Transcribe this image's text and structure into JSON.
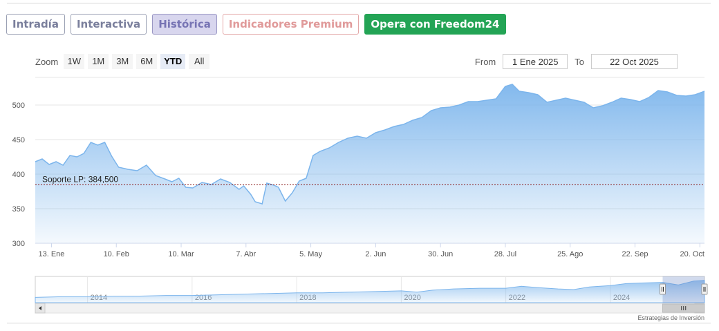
{
  "tabs": [
    {
      "label": "Intradía",
      "style": "normal"
    },
    {
      "label": "Interactiva",
      "style": "normal"
    },
    {
      "label": "Histórica",
      "style": "active"
    },
    {
      "label": "Indicadores Premium",
      "style": "premium"
    },
    {
      "label": "Opera con Freedom24",
      "style": "cta"
    }
  ],
  "zoom": {
    "label": "Zoom",
    "buttons": [
      "1W",
      "1M",
      "3M",
      "6M",
      "YTD",
      "All"
    ],
    "selected": "YTD"
  },
  "range": {
    "from_label": "From",
    "from_value": "1 Ene 2025",
    "to_label": "To",
    "to_value": "22 Oct 2025"
  },
  "credit": "Estrategias de Inversión",
  "chart_data": {
    "type": "area",
    "ylim": [
      300,
      540
    ],
    "yticks": [
      300,
      350,
      400,
      450,
      500
    ],
    "x_start": "2025-01-06",
    "x_end": "2025-10-22",
    "xticks": [
      {
        "date": "2025-01-13",
        "label": "13. Ene"
      },
      {
        "date": "2025-02-10",
        "label": "10. Feb"
      },
      {
        "date": "2025-03-10",
        "label": "10. Mar"
      },
      {
        "date": "2025-04-07",
        "label": "7. Abr"
      },
      {
        "date": "2025-05-05",
        "label": "5. May"
      },
      {
        "date": "2025-06-02",
        "label": "2. Jun"
      },
      {
        "date": "2025-06-30",
        "label": "30. Jun"
      },
      {
        "date": "2025-07-28",
        "label": "28. Jul"
      },
      {
        "date": "2025-08-25",
        "label": "25. Ago"
      },
      {
        "date": "2025-09-22",
        "label": "22. Sep"
      },
      {
        "date": "2025-10-20",
        "label": "20. Oct"
      }
    ],
    "line_color": "#7cb5ec",
    "support": {
      "label": "Soporte LP: 384,500",
      "value": 384.5,
      "color": "#8b1a1a"
    },
    "series": [
      {
        "values": [
          [
            "2025-01-06",
            418
          ],
          [
            "2025-01-09",
            422
          ],
          [
            "2025-01-12",
            414
          ],
          [
            "2025-01-15",
            418
          ],
          [
            "2025-01-18",
            413
          ],
          [
            "2025-01-21",
            427
          ],
          [
            "2025-01-24",
            425
          ],
          [
            "2025-01-27",
            430
          ],
          [
            "2025-01-30",
            446
          ],
          [
            "2025-02-02",
            442
          ],
          [
            "2025-02-05",
            446
          ],
          [
            "2025-02-08",
            426
          ],
          [
            "2025-02-11",
            410
          ],
          [
            "2025-02-15",
            407
          ],
          [
            "2025-02-19",
            405
          ],
          [
            "2025-02-23",
            413
          ],
          [
            "2025-02-27",
            398
          ],
          [
            "2025-03-03",
            393
          ],
          [
            "2025-03-06",
            389
          ],
          [
            "2025-03-09",
            394
          ],
          [
            "2025-03-12",
            381
          ],
          [
            "2025-03-15",
            380
          ],
          [
            "2025-03-19",
            388
          ],
          [
            "2025-03-23",
            385
          ],
          [
            "2025-03-27",
            393
          ],
          [
            "2025-03-31",
            388
          ],
          [
            "2025-04-04",
            378
          ],
          [
            "2025-04-06",
            383
          ],
          [
            "2025-04-09",
            371
          ],
          [
            "2025-04-11",
            360
          ],
          [
            "2025-04-14",
            357
          ],
          [
            "2025-04-16",
            387
          ],
          [
            "2025-04-19",
            384
          ],
          [
            "2025-04-21",
            381
          ],
          [
            "2025-04-24",
            361
          ],
          [
            "2025-04-27",
            373
          ],
          [
            "2025-04-30",
            390
          ],
          [
            "2025-05-03",
            394
          ],
          [
            "2025-05-06",
            427
          ],
          [
            "2025-05-09",
            433
          ],
          [
            "2025-05-13",
            438
          ],
          [
            "2025-05-17",
            446
          ],
          [
            "2025-05-21",
            452
          ],
          [
            "2025-05-25",
            455
          ],
          [
            "2025-05-29",
            452
          ],
          [
            "2025-06-02",
            460
          ],
          [
            "2025-06-06",
            464
          ],
          [
            "2025-06-10",
            469
          ],
          [
            "2025-06-14",
            472
          ],
          [
            "2025-06-18",
            478
          ],
          [
            "2025-06-22",
            482
          ],
          [
            "2025-06-26",
            492
          ],
          [
            "2025-06-30",
            496
          ],
          [
            "2025-07-04",
            497
          ],
          [
            "2025-07-08",
            500
          ],
          [
            "2025-07-12",
            505
          ],
          [
            "2025-07-16",
            505
          ],
          [
            "2025-07-20",
            507
          ],
          [
            "2025-07-24",
            509
          ],
          [
            "2025-07-28",
            527
          ],
          [
            "2025-07-31",
            530
          ],
          [
            "2025-08-03",
            520
          ],
          [
            "2025-08-07",
            518
          ],
          [
            "2025-08-11",
            515
          ],
          [
            "2025-08-15",
            504
          ],
          [
            "2025-08-19",
            507
          ],
          [
            "2025-08-23",
            510
          ],
          [
            "2025-08-27",
            507
          ],
          [
            "2025-08-31",
            504
          ],
          [
            "2025-09-04",
            496
          ],
          [
            "2025-09-08",
            499
          ],
          [
            "2025-09-12",
            504
          ],
          [
            "2025-09-16",
            510
          ],
          [
            "2025-09-20",
            508
          ],
          [
            "2025-09-24",
            505
          ],
          [
            "2025-09-28",
            511
          ],
          [
            "2025-10-02",
            521
          ],
          [
            "2025-10-06",
            519
          ],
          [
            "2025-10-10",
            514
          ],
          [
            "2025-10-14",
            513
          ],
          [
            "2025-10-18",
            515
          ],
          [
            "2025-10-22",
            520
          ]
        ]
      }
    ],
    "navigator": {
      "year_labels": [
        "2014",
        "2016",
        "2018",
        "2020",
        "2022",
        "2024"
      ],
      "x_start_year": 2013.0,
      "x_end_year": 2025.8,
      "values": [
        [
          2013.0,
          8
        ],
        [
          2013.5,
          9
        ],
        [
          2014.0,
          9
        ],
        [
          2014.5,
          10
        ],
        [
          2015.0,
          10
        ],
        [
          2015.5,
          11
        ],
        [
          2016.0,
          11
        ],
        [
          2016.5,
          12
        ],
        [
          2017.0,
          13
        ],
        [
          2017.5,
          14
        ],
        [
          2018.0,
          15
        ],
        [
          2018.5,
          15
        ],
        [
          2019.0,
          16
        ],
        [
          2019.5,
          17
        ],
        [
          2020.0,
          18
        ],
        [
          2020.3,
          16
        ],
        [
          2020.6,
          19
        ],
        [
          2021.0,
          21
        ],
        [
          2021.5,
          22
        ],
        [
          2022.0,
          22
        ],
        [
          2022.3,
          25
        ],
        [
          2022.6,
          23
        ],
        [
          2023.0,
          21
        ],
        [
          2023.3,
          20
        ],
        [
          2023.6,
          24
        ],
        [
          2024.0,
          26
        ],
        [
          2024.3,
          29
        ],
        [
          2024.6,
          30
        ],
        [
          2025.0,
          31
        ],
        [
          2025.3,
          27
        ],
        [
          2025.6,
          33
        ],
        [
          2025.8,
          34
        ]
      ],
      "window_start_year": 2025.0,
      "window_end_year": 2025.8
    }
  }
}
